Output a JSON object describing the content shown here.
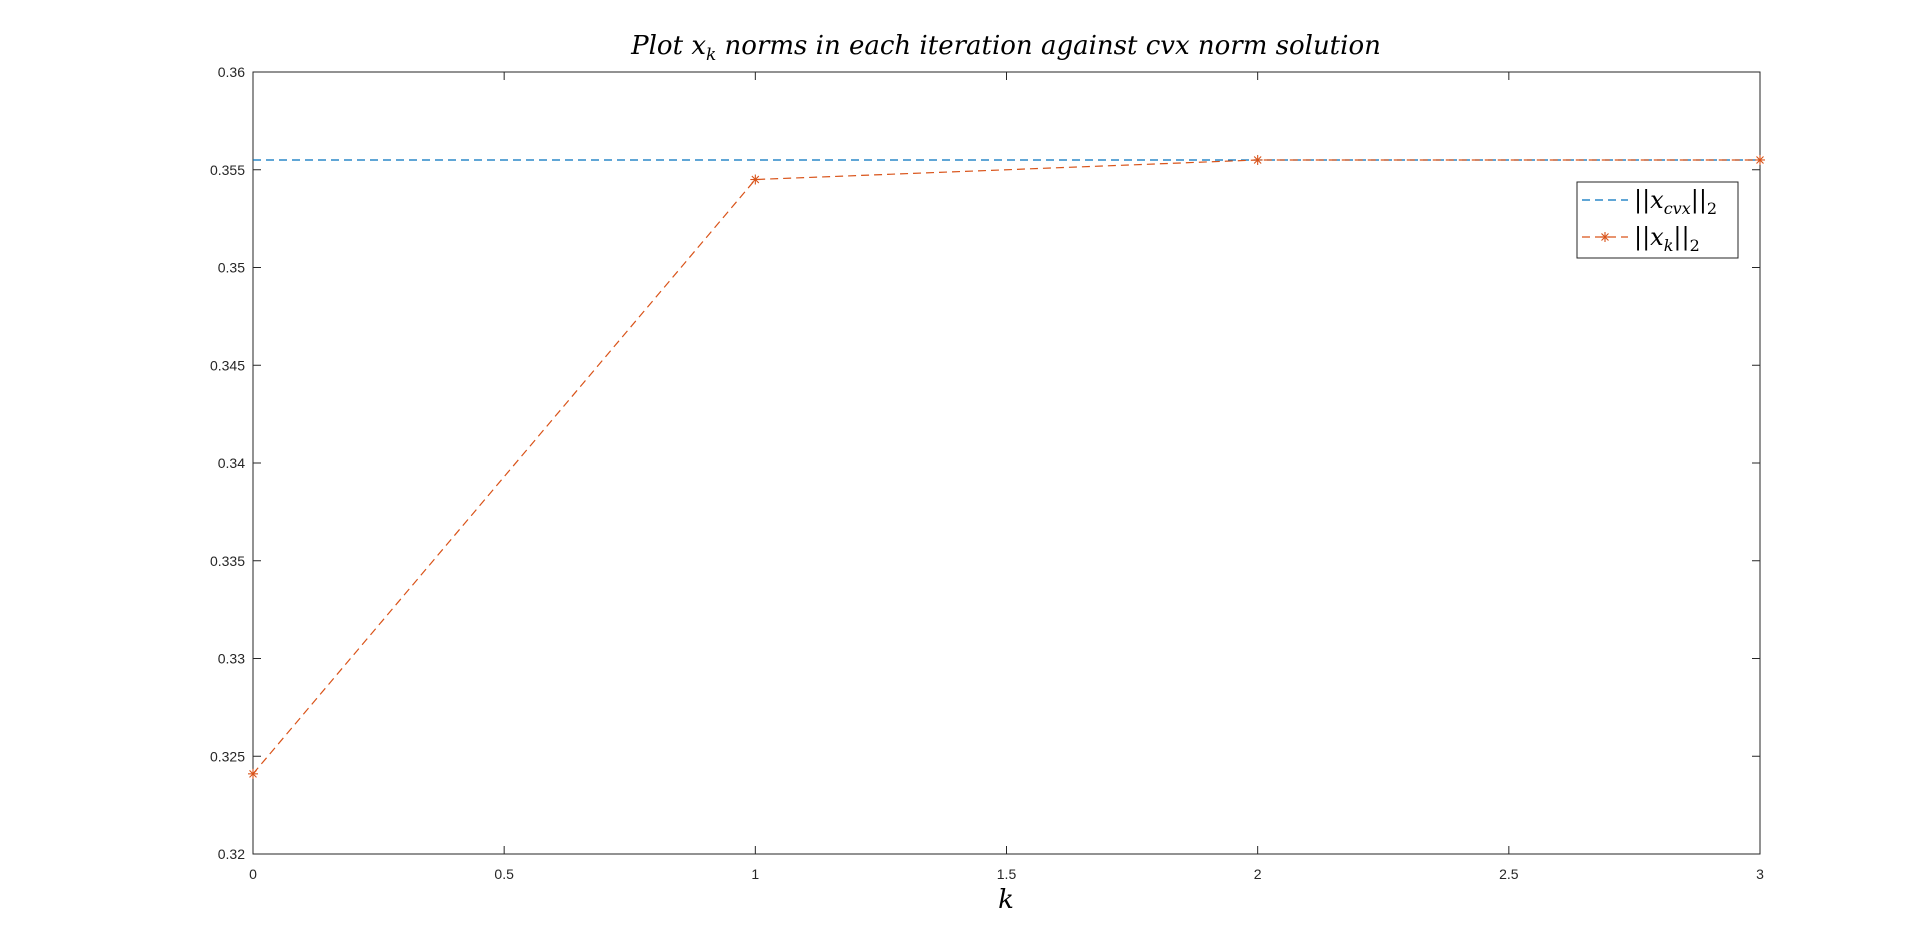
{
  "chart_data": {
    "type": "line",
    "title": {
      "prefix": "Plot ",
      "var": "x",
      "sub": "k",
      "suffix": " norms in each iteration against cvx norm solution"
    },
    "xlabel": "k",
    "ylabel": "",
    "xlim": [
      0,
      3
    ],
    "ylim": [
      0.32,
      0.36
    ],
    "xticks": [
      0,
      0.5,
      1,
      1.5,
      2,
      2.5,
      3
    ],
    "xtick_labels": [
      "0",
      "0.5",
      "1",
      "1.5",
      "2",
      "2.5",
      "3"
    ],
    "yticks": [
      0.32,
      0.325,
      0.33,
      0.335,
      0.34,
      0.345,
      0.35,
      0.355,
      0.36
    ],
    "ytick_labels": [
      "0.32",
      "0.325",
      "0.33",
      "0.335",
      "0.34",
      "0.345",
      "0.35",
      "0.355",
      "0.36"
    ],
    "grid": false,
    "legend_position": "top-right",
    "series": [
      {
        "legend": {
          "bars_left": "||",
          "var": "x",
          "sub": "cvx",
          "bars_right": "||",
          "norm_sub": "2"
        },
        "color": "#0072BD",
        "style": "dashed",
        "marker": "none",
        "x": [
          0,
          3
        ],
        "y": [
          0.3555,
          0.3555
        ]
      },
      {
        "legend": {
          "bars_left": "||",
          "var": "x",
          "sub": "k",
          "bars_right": "||",
          "norm_sub": "2"
        },
        "color": "#D95319",
        "style": "dashed",
        "marker": "asterisk",
        "x": [
          0,
          1,
          2,
          3
        ],
        "y": [
          0.3241,
          0.3545,
          0.3555,
          0.3555
        ]
      }
    ]
  }
}
